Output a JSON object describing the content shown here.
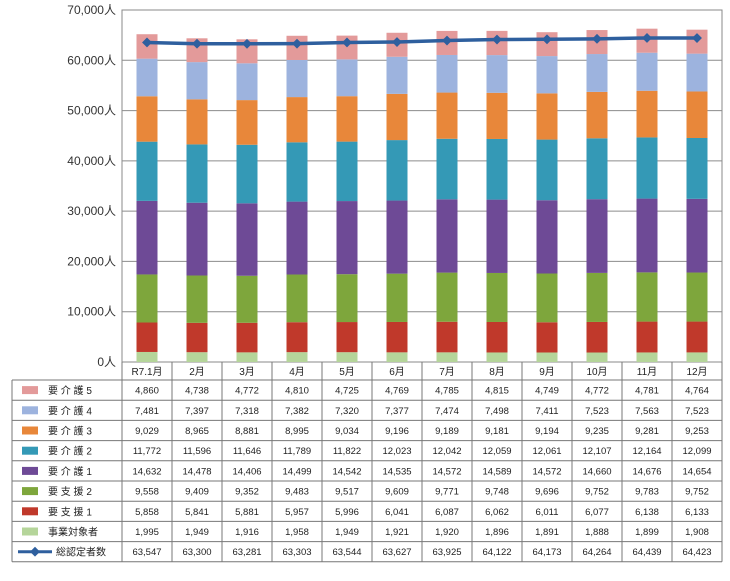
{
  "chart_data": {
    "type": "bar",
    "stacked": true,
    "categories": [
      "R7.1月",
      "2月",
      "3月",
      "4月",
      "5月",
      "6月",
      "7月",
      "8月",
      "9月",
      "10月",
      "11月",
      "12月"
    ],
    "y_unit": "人",
    "ylim": [
      0,
      70000
    ],
    "yticks": [
      0,
      10000,
      20000,
      30000,
      40000,
      50000,
      60000,
      70000
    ],
    "ytick_labels": [
      "0人",
      "10,000人",
      "20,000人",
      "30,000人",
      "40,000人",
      "50,000人",
      "60,000人",
      "70,000人"
    ],
    "grid": true,
    "legend": "table-below",
    "series": [
      {
        "name": "事業対象者",
        "color": "#b5d59a",
        "values": [
          1995,
          1949,
          1916,
          1958,
          1949,
          1921,
          1920,
          1896,
          1891,
          1888,
          1899,
          1908
        ],
        "labels": [
          "1,995",
          "1,949",
          "1,916",
          "1,958",
          "1,949",
          "1,921",
          "1,920",
          "1,896",
          "1,891",
          "1,888",
          "1,899",
          "1,908"
        ]
      },
      {
        "name": "要 支 援 1",
        "color": "#c0392b",
        "values": [
          5858,
          5841,
          5881,
          5957,
          5996,
          6041,
          6087,
          6062,
          6011,
          6077,
          6138,
          6133
        ],
        "labels": [
          "5,858",
          "5,841",
          "5,881",
          "5,957",
          "5,996",
          "6,041",
          "6,087",
          "6,062",
          "6,011",
          "6,077",
          "6,138",
          "6,133"
        ]
      },
      {
        "name": "要 支 援 2",
        "color": "#7ea63c",
        "values": [
          9558,
          9409,
          9352,
          9483,
          9517,
          9609,
          9771,
          9748,
          9696,
          9752,
          9783,
          9752
        ],
        "labels": [
          "9,558",
          "9,409",
          "9,352",
          "9,483",
          "9,517",
          "9,609",
          "9,771",
          "9,748",
          "9,696",
          "9,752",
          "9,783",
          "9,752"
        ]
      },
      {
        "name": "要 介 護 1",
        "color": "#6e4a96",
        "values": [
          14632,
          14478,
          14406,
          14499,
          14542,
          14535,
          14572,
          14589,
          14572,
          14660,
          14676,
          14654
        ],
        "labels": [
          "14,632",
          "14,478",
          "14,406",
          "14,499",
          "14,542",
          "14,535",
          "14,572",
          "14,589",
          "14,572",
          "14,660",
          "14,676",
          "14,654"
        ]
      },
      {
        "name": "要 介 護 2",
        "color": "#3499b6",
        "values": [
          11772,
          11596,
          11646,
          11789,
          11822,
          12023,
          12042,
          12059,
          12061,
          12107,
          12164,
          12099
        ],
        "labels": [
          "11,772",
          "11,596",
          "11,646",
          "11,789",
          "11,822",
          "12,023",
          "12,042",
          "12,059",
          "12,061",
          "12,107",
          "12,164",
          "12,099"
        ]
      },
      {
        "name": "要 介 護 3",
        "color": "#e8873a",
        "values": [
          9029,
          8965,
          8881,
          8995,
          9034,
          9196,
          9189,
          9181,
          9194,
          9235,
          9281,
          9253
        ],
        "labels": [
          "9,029",
          "8,965",
          "8,881",
          "8,995",
          "9,034",
          "9,196",
          "9,189",
          "9,181",
          "9,194",
          "9,235",
          "9,281",
          "9,253"
        ]
      },
      {
        "name": "要 介 護 4",
        "color": "#9db3de",
        "values": [
          7481,
          7397,
          7318,
          7382,
          7320,
          7377,
          7474,
          7498,
          7411,
          7523,
          7563,
          7523
        ],
        "labels": [
          "7,481",
          "7,397",
          "7,318",
          "7,382",
          "7,320",
          "7,377",
          "7,474",
          "7,498",
          "7,411",
          "7,523",
          "7,563",
          "7,523"
        ]
      },
      {
        "name": "要 介 護 5",
        "color": "#e39a9a",
        "values": [
          4860,
          4738,
          4772,
          4810,
          4725,
          4769,
          4785,
          4815,
          4749,
          4772,
          4781,
          4764
        ],
        "labels": [
          "4,860",
          "4,738",
          "4,772",
          "4,810",
          "4,725",
          "4,769",
          "4,785",
          "4,815",
          "4,749",
          "4,772",
          "4,781",
          "4,764"
        ]
      }
    ],
    "line_series": {
      "name": "総認定者数",
      "color": "#2e5f9e",
      "values": [
        63547,
        63300,
        63281,
        63303,
        63544,
        63627,
        63925,
        64122,
        64173,
        64264,
        64439,
        64423
      ],
      "labels": [
        "63,547",
        "63,300",
        "63,281",
        "63,303",
        "63,544",
        "63,627",
        "63,925",
        "64,122",
        "64,173",
        "64,264",
        "64,439",
        "64,423"
      ]
    }
  }
}
